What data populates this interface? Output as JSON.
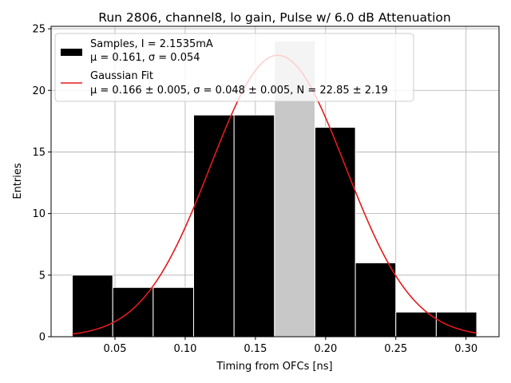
{
  "chart_data": {
    "type": "histogram",
    "title": "Run 2806, channel8, lo gain, Pulse w/ 6.0 dB Attenuation",
    "xlabel": "Timing from OFCs [ns]",
    "ylabel": "Entries",
    "xlim": [
      0.0045,
      0.3235
    ],
    "ylim": [
      0,
      25.2
    ],
    "xticks": [
      0.05,
      0.1,
      0.15,
      0.2,
      0.25,
      0.3
    ],
    "xtick_labels": [
      "0.05",
      "0.10",
      "0.15",
      "0.20",
      "0.25",
      "0.30"
    ],
    "yticks": [
      0,
      5,
      10,
      15,
      20,
      25
    ],
    "ytick_labels": [
      "0",
      "5",
      "10",
      "15",
      "20",
      "25"
    ],
    "grid": true,
    "bins": {
      "edges": [
        0.0196,
        0.0484,
        0.0772,
        0.106,
        0.1348,
        0.1636,
        0.1924,
        0.2212,
        0.25,
        0.2788,
        0.3076
      ],
      "counts": [
        5,
        4,
        4,
        18,
        18,
        24,
        17,
        6,
        2,
        2
      ],
      "color": "#000000",
      "highlight_bin_index": 5,
      "highlight_color": "#c8c8c8"
    },
    "fit": {
      "name": "Gaussian Fit",
      "mu": 0.166,
      "sigma": 0.048,
      "N": 22.85,
      "x_range": [
        0.0196,
        0.3076
      ],
      "color": "#e41a1c"
    },
    "legend": {
      "location": "upper-left",
      "entries": [
        {
          "line1": "Samples, I = 2.1535mA",
          "line2": "μ = 0.161, σ = 0.054"
        },
        {
          "line1": "Gaussian Fit",
          "line2": "μ = 0.166 ± 0.005, σ = 0.048 ± 0.005, N = 22.85 ± 2.19"
        }
      ]
    }
  }
}
